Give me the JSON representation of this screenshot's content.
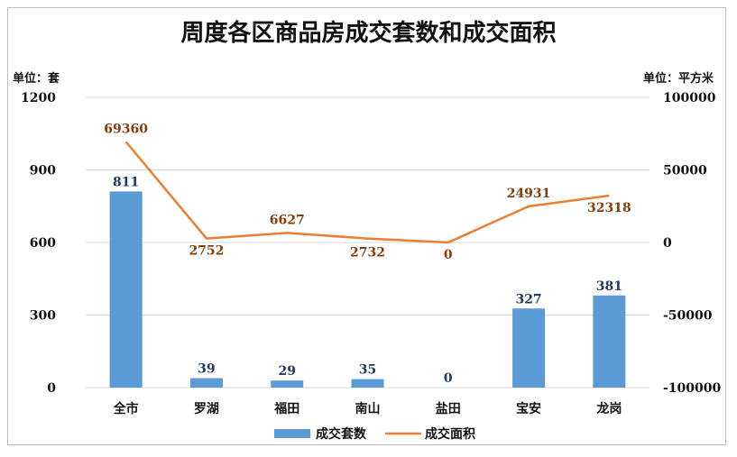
{
  "chart_data": {
    "type": "bar",
    "title": "周度各区商品房成交套数和成交面积",
    "left_unit": "单位：套",
    "right_unit": "单位：平方米",
    "categories": [
      "全市",
      "罗湖",
      "福田",
      "南山",
      "盐田",
      "宝安",
      "龙岗"
    ],
    "series": [
      {
        "name": "成交套数",
        "type": "bar",
        "axis": "left",
        "color": "#5b9bd5",
        "values": [
          811,
          39,
          29,
          35,
          0,
          327,
          381
        ]
      },
      {
        "name": "成交面积",
        "type": "line",
        "axis": "right",
        "color": "#ed7d31",
        "values": [
          69360,
          2752,
          6627,
          2732,
          0,
          24931,
          32318
        ]
      }
    ],
    "left_axis": {
      "ylim": [
        0,
        1200
      ],
      "ticks": [
        "0",
        "300",
        "600",
        "900",
        "1200"
      ]
    },
    "right_axis": {
      "ylim": [
        -100000,
        100000
      ],
      "ticks": [
        "-100000",
        "-50000",
        "0",
        "50000",
        "100000"
      ]
    },
    "grid": true,
    "legend": "bottom"
  }
}
